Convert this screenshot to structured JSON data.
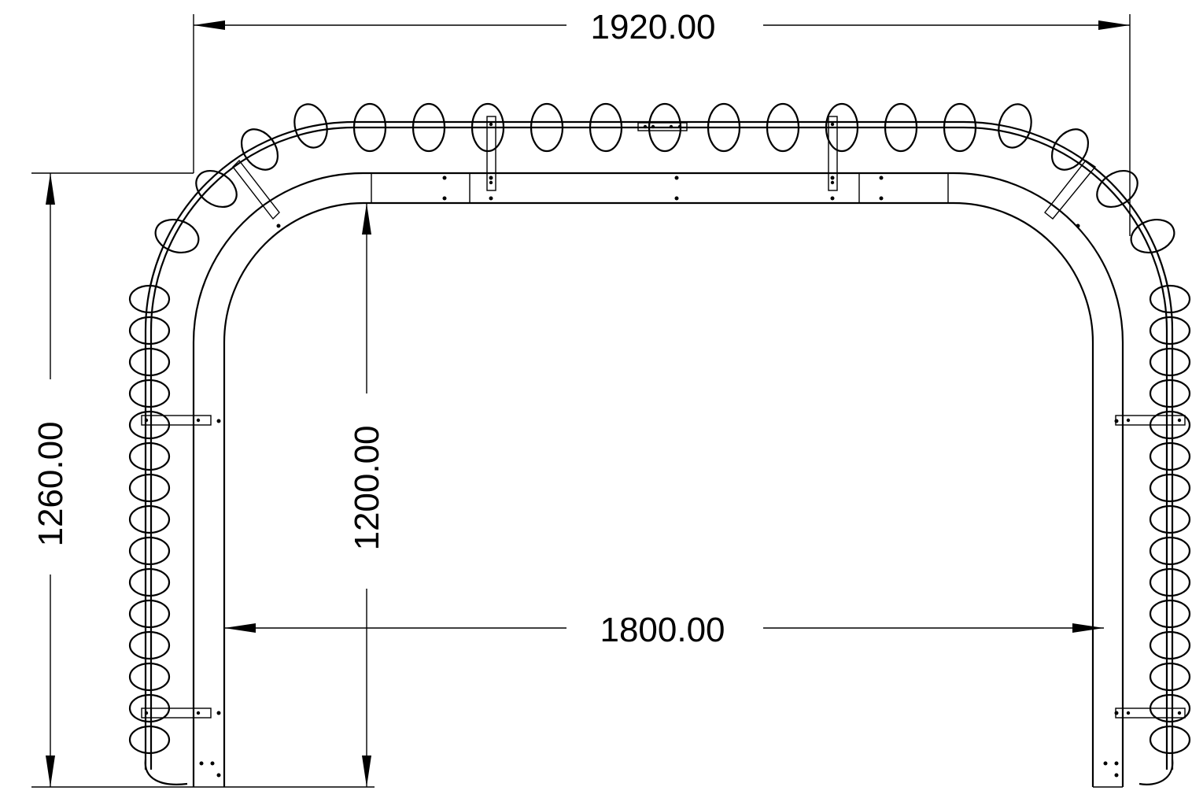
{
  "dimensions": {
    "overall_width": "1920.00",
    "inner_width": "1800.00",
    "overall_height": "1260.00",
    "inner_height": "1200.00"
  },
  "colors": {
    "line": "#000000",
    "background": "#ffffff"
  }
}
